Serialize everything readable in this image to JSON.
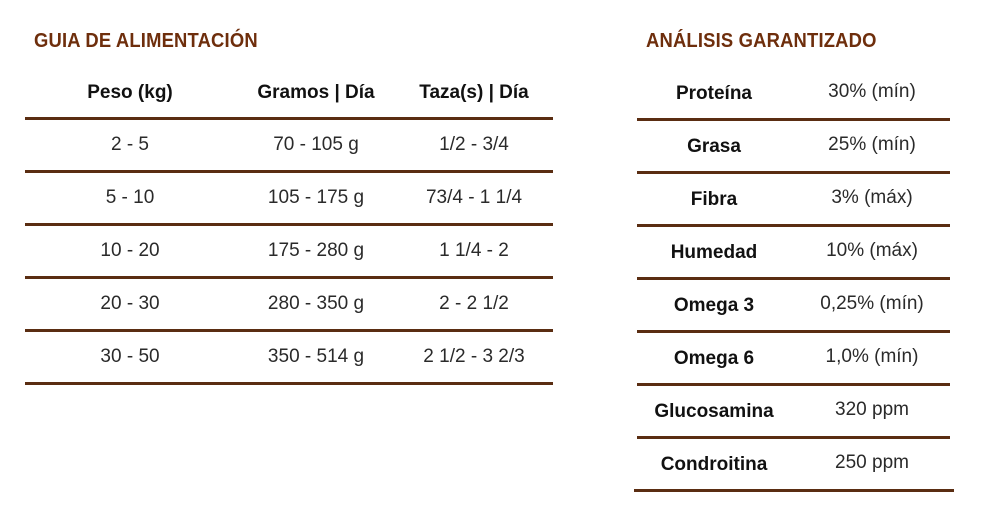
{
  "feeding_guide": {
    "title": "GUIA DE ALIMENTACIÓN",
    "headers": [
      "Peso (kg)",
      "Gramos | Día",
      "Taza(s) | Día"
    ],
    "rows": [
      [
        "2 - 5",
        "70 - 105 g",
        "1/2 - 3/4"
      ],
      [
        "5 - 10",
        "105 - 175 g",
        "73/4 - 1 1/4"
      ],
      [
        "10 - 20",
        "175 - 280 g",
        "1 1/4 - 2"
      ],
      [
        "20 - 30",
        "280 - 350 g",
        "2 - 2 1/2"
      ],
      [
        "30 - 50",
        "350 - 514 g",
        "2 1/2  - 3 2/3"
      ]
    ]
  },
  "guaranteed_analysis": {
    "title": "ANÁLISIS GARANTIZADO",
    "rows": [
      [
        "Proteína",
        "30% (mín)"
      ],
      [
        "Grasa",
        "25% (mín)"
      ],
      [
        "Fibra",
        "3% (máx)"
      ],
      [
        "Humedad",
        "10% (máx)"
      ],
      [
        "Omega 3",
        "0,25% (mín)"
      ],
      [
        "Omega 6",
        "1,0% (mín)"
      ],
      [
        "Glucosamina",
        "320 ppm"
      ],
      [
        "Condroitina",
        "250 ppm"
      ]
    ]
  },
  "colors": {
    "title": "#6e2e0c",
    "rule": "#5a2d12"
  }
}
